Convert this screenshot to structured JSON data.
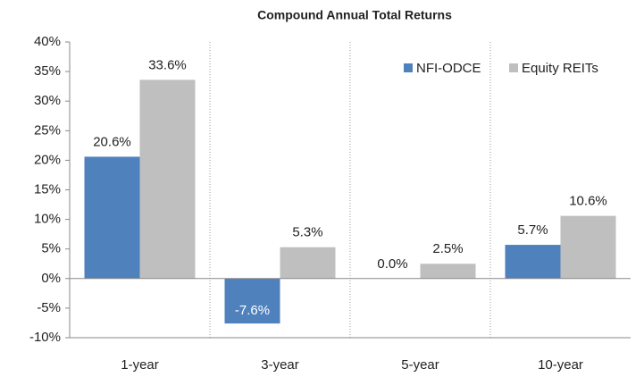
{
  "chart_data": {
    "type": "bar",
    "title": "Compound Annual Total Returns",
    "categories": [
      "1-year",
      "3-year",
      "5-year",
      "10-year"
    ],
    "series": [
      {
        "name": "NFI-ODCE",
        "color": "#4f81bd",
        "values": [
          20.6,
          -7.6,
          0.0,
          5.7
        ],
        "value_labels": [
          "20.6%",
          "-7.6%",
          "0.0%",
          "5.7%"
        ]
      },
      {
        "name": "Equity REITs",
        "color": "#bfbfbf",
        "values": [
          33.6,
          5.3,
          2.5,
          10.6
        ],
        "value_labels": [
          "33.6%",
          "5.3%",
          "2.5%",
          "10.6%"
        ]
      }
    ],
    "ylim": [
      -10,
      40
    ],
    "yticks": [
      {
        "value": -10,
        "label": "-10%"
      },
      {
        "value": -5,
        "label": "-5%"
      },
      {
        "value": 0,
        "label": "0%"
      },
      {
        "value": 5,
        "label": "5%"
      },
      {
        "value": 10,
        "label": "10%"
      },
      {
        "value": 15,
        "label": "15%"
      },
      {
        "value": 20,
        "label": "20%"
      },
      {
        "value": 25,
        "label": "25%"
      },
      {
        "value": 30,
        "label": "30%"
      },
      {
        "value": 35,
        "label": "35%"
      },
      {
        "value": 40,
        "label": "40%"
      }
    ],
    "legend": "upper right"
  }
}
